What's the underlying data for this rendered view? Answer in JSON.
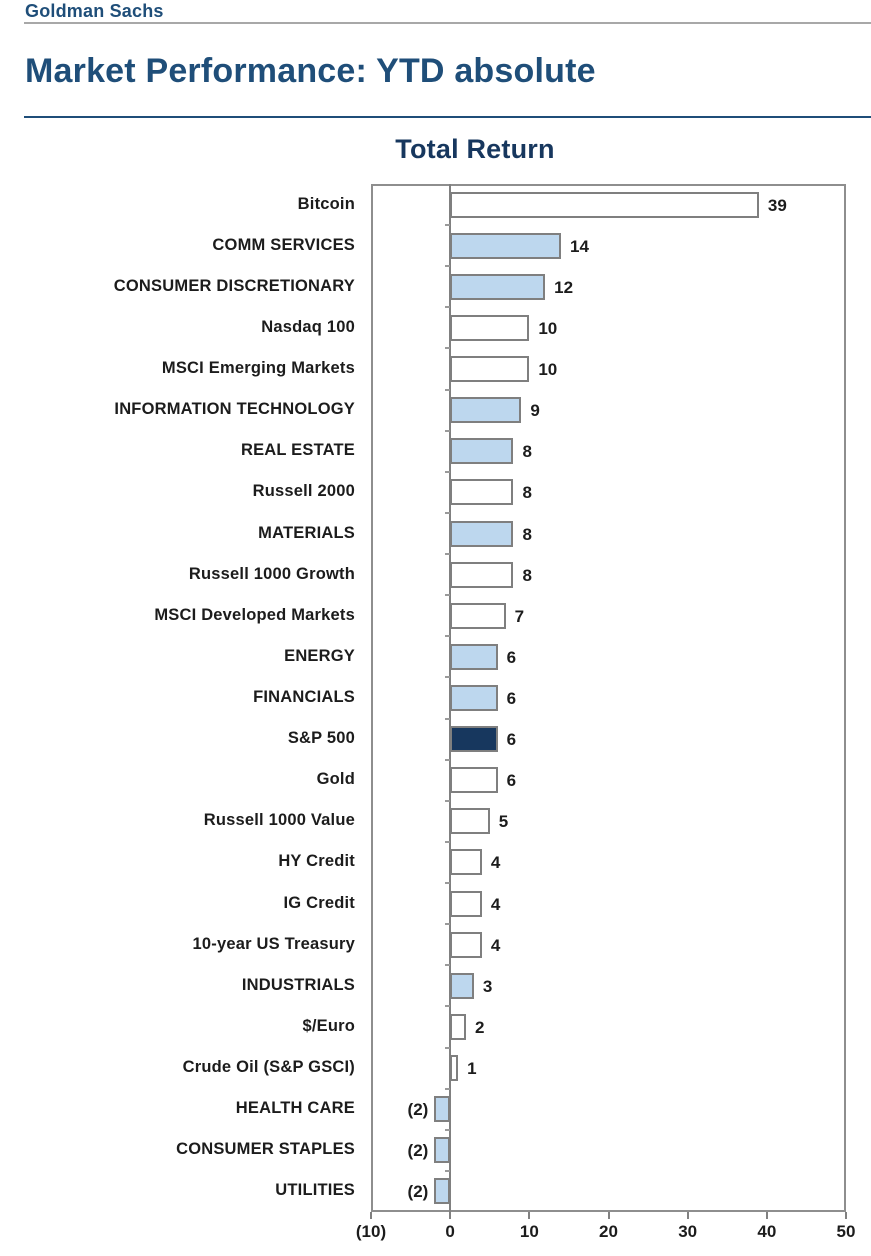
{
  "header": {
    "brand": "Goldman Sachs",
    "title": "Market Performance: YTD absolute"
  },
  "chart_data": {
    "type": "bar",
    "orientation": "horizontal",
    "title": "Total Return",
    "xlabel": "",
    "ylabel": "",
    "xlim": [
      -10,
      50
    ],
    "grid": false,
    "legend": "none",
    "negative_number_format": "parentheses",
    "x_ticks": [
      {
        "value": -10,
        "label": "(10)"
      },
      {
        "value": 0,
        "label": "0"
      },
      {
        "value": 10,
        "label": "10"
      },
      {
        "value": 20,
        "label": "20"
      },
      {
        "value": 30,
        "label": "30"
      },
      {
        "value": 40,
        "label": "40"
      },
      {
        "value": 50,
        "label": "50"
      }
    ],
    "colors": {
      "index_bar_fill": "#FFFFFF",
      "sector_bar_fill": "#BDD7EE",
      "sp500_bar_fill": "#17375E",
      "bar_border": "#7F7F7F",
      "accent_navy": "#1F4E79"
    },
    "items": [
      {
        "label": "Bitcoin",
        "value": 39,
        "display": "39",
        "color_key": "index_bar_fill"
      },
      {
        "label": "COMM SERVICES",
        "value": 14,
        "display": "14",
        "color_key": "sector_bar_fill"
      },
      {
        "label": "CONSUMER DISCRETIONARY",
        "value": 12,
        "display": "12",
        "color_key": "sector_bar_fill"
      },
      {
        "label": "Nasdaq 100",
        "value": 10,
        "display": "10",
        "color_key": "index_bar_fill"
      },
      {
        "label": "MSCI Emerging Markets",
        "value": 10,
        "display": "10",
        "color_key": "index_bar_fill"
      },
      {
        "label": "INFORMATION TECHNOLOGY",
        "value": 9,
        "display": "9",
        "color_key": "sector_bar_fill"
      },
      {
        "label": "REAL ESTATE",
        "value": 8,
        "display": "8",
        "color_key": "sector_bar_fill"
      },
      {
        "label": "Russell 2000",
        "value": 8,
        "display": "8",
        "color_key": "index_bar_fill"
      },
      {
        "label": "MATERIALS",
        "value": 8,
        "display": "8",
        "color_key": "sector_bar_fill"
      },
      {
        "label": "Russell 1000 Growth",
        "value": 8,
        "display": "8",
        "color_key": "index_bar_fill"
      },
      {
        "label": "MSCI Developed Markets",
        "value": 7,
        "display": "7",
        "color_key": "index_bar_fill"
      },
      {
        "label": "ENERGY",
        "value": 6,
        "display": "6",
        "color_key": "sector_bar_fill"
      },
      {
        "label": "FINANCIALS",
        "value": 6,
        "display": "6",
        "color_key": "sector_bar_fill"
      },
      {
        "label": "S&P 500",
        "value": 6,
        "display": "6",
        "color_key": "sp500_bar_fill"
      },
      {
        "label": "Gold",
        "value": 6,
        "display": "6",
        "color_key": "index_bar_fill"
      },
      {
        "label": "Russell 1000 Value",
        "value": 5,
        "display": "5",
        "color_key": "index_bar_fill"
      },
      {
        "label": "HY Credit",
        "value": 4,
        "display": "4",
        "color_key": "index_bar_fill"
      },
      {
        "label": "IG Credit",
        "value": 4,
        "display": "4",
        "color_key": "index_bar_fill"
      },
      {
        "label": "10-year US Treasury",
        "value": 4,
        "display": "4",
        "color_key": "index_bar_fill"
      },
      {
        "label": "INDUSTRIALS",
        "value": 3,
        "display": "3",
        "color_key": "sector_bar_fill"
      },
      {
        "label": "$/Euro",
        "value": 2,
        "display": "2",
        "color_key": "index_bar_fill"
      },
      {
        "label": "Crude Oil (S&P GSCI)",
        "value": 1,
        "display": "1",
        "color_key": "index_bar_fill"
      },
      {
        "label": "HEALTH CARE",
        "value": -2,
        "display": "(2)",
        "color_key": "sector_bar_fill"
      },
      {
        "label": "CONSUMER STAPLES",
        "value": -2,
        "display": "(2)",
        "color_key": "sector_bar_fill"
      },
      {
        "label": "UTILITIES",
        "value": -2,
        "display": "(2)",
        "color_key": "sector_bar_fill"
      }
    ]
  }
}
